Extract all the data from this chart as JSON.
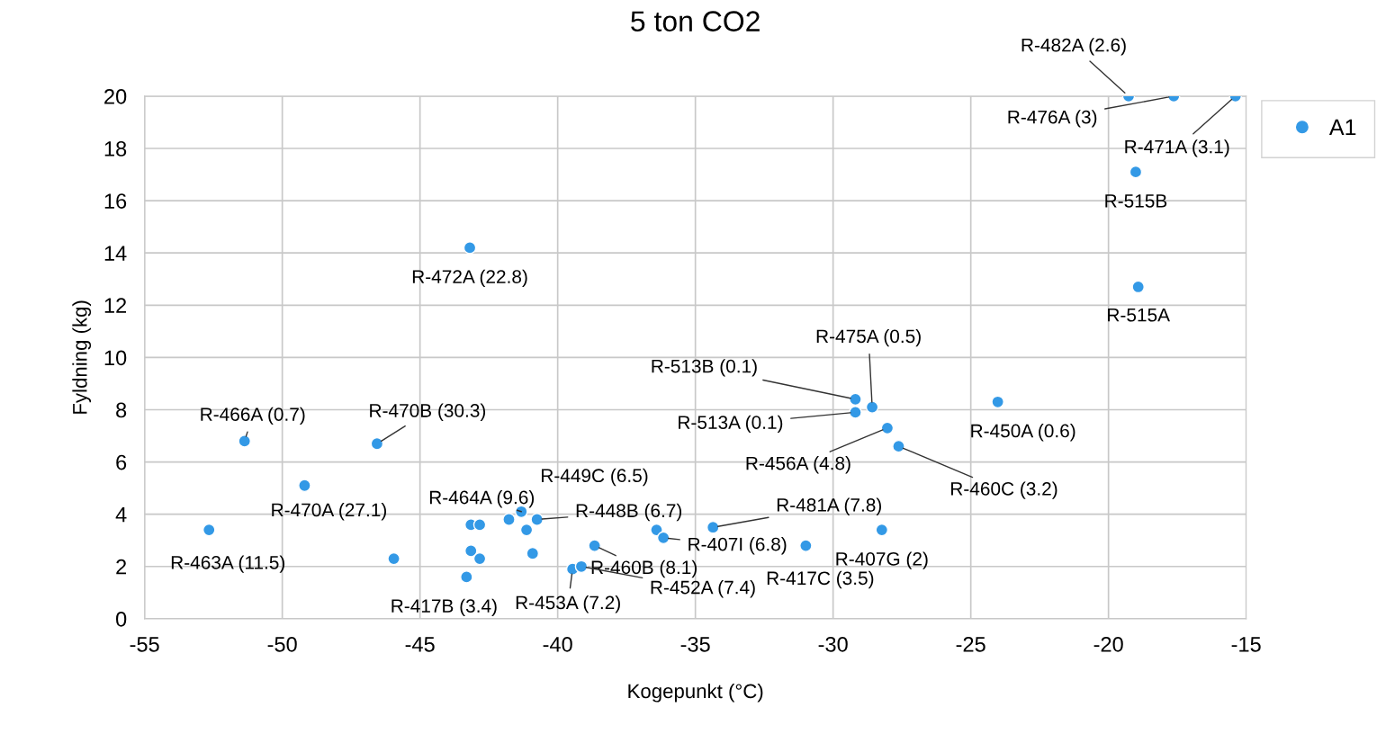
{
  "chart_data": {
    "type": "scatter",
    "title": "5 ton CO2",
    "xlabel": "Kogepunkt (°C)",
    "ylabel": "Fyldning (kg)",
    "xlim": [
      -55,
      -15
    ],
    "xticks": [
      -55,
      -50,
      -45,
      -40,
      -35,
      -30,
      -25,
      -20,
      -15
    ],
    "ylim": [
      0,
      20
    ],
    "yticks": [
      0,
      2,
      4,
      6,
      8,
      10,
      12,
      14,
      16,
      18,
      20
    ],
    "grid": true,
    "legend": "top right",
    "marker": "circle",
    "series": [
      {
        "name": "A1",
        "color": "#3399e6",
        "x": [
          -19.27,
          -17.63,
          -15.39,
          -19.01,
          -18.92,
          -43.19,
          -29.19,
          -29.19,
          -28.58,
          -28.03,
          -27.62,
          -24.02,
          -51.37,
          -46.56,
          -49.19,
          -52.66,
          -34.36,
          -30.99,
          -28.23,
          -43.15,
          -42.83,
          -41.77,
          -41.32,
          -40.75,
          -41.13,
          -36.41,
          -36.16,
          -45.95,
          -43.15,
          -42.83,
          -38.66,
          -39.46,
          -39.14,
          -43.31,
          -40.91
        ],
        "values": [
          20,
          20,
          20,
          17.1,
          12.7,
          14.2,
          8.4,
          7.9,
          8.1,
          7.3,
          6.6,
          8.3,
          6.8,
          6.7,
          5.1,
          3.4,
          3.5,
          2.8,
          3.4,
          3.6,
          3.6,
          3.8,
          4.1,
          3.8,
          3.4,
          3.4,
          3.1,
          2.3,
          2.6,
          2.3,
          2.8,
          1.9,
          2.0,
          1.6,
          2.5
        ]
      }
    ],
    "annotations": [
      {
        "text": "R-482A (2.6)",
        "x": -19.27,
        "y": 20
      },
      {
        "text": "R-476A (3)",
        "x": -17.63,
        "y": 20
      },
      {
        "text": "R-471A (3.1)",
        "x": -15.39,
        "y": 20
      },
      {
        "text": "R-515B",
        "x": -19.01,
        "y": 17.1
      },
      {
        "text": "R-515A",
        "x": -18.92,
        "y": 12.7
      },
      {
        "text": "R-472A (22.8)",
        "x": -43.19,
        "y": 14.2
      },
      {
        "text": "R-513B (0.1)",
        "x": -29.19,
        "y": 8.4
      },
      {
        "text": "R-513A (0.1)",
        "x": -29.19,
        "y": 7.9
      },
      {
        "text": "R-475A (0.5)",
        "x": -28.58,
        "y": 8.1
      },
      {
        "text": "R-456A (4.8)",
        "x": -28.03,
        "y": 7.3
      },
      {
        "text": "R-460C (3.2)",
        "x": -27.62,
        "y": 6.6
      },
      {
        "text": "R-450A (0.6)",
        "x": -24.02,
        "y": 8.3
      },
      {
        "text": "R-466A (0.7)",
        "x": -51.37,
        "y": 6.8
      },
      {
        "text": "R-470B (30.3)",
        "x": -46.56,
        "y": 6.7
      },
      {
        "text": "R-470A (27.1)",
        "x": -49.19,
        "y": 5.1
      },
      {
        "text": "R-463A (11.5)",
        "x": -52.66,
        "y": 3.4
      },
      {
        "text": "R-481A (7.8)",
        "x": -34.36,
        "y": 3.5
      },
      {
        "text": "R-417C (3.5)",
        "x": -30.99,
        "y": 2.8
      },
      {
        "text": "R-407G (2)",
        "x": -28.23,
        "y": 3.4
      },
      {
        "text": "R-464A (9.6)",
        "x": -41.32,
        "y": 4.1
      },
      {
        "text": "R-449C (6.5)",
        "x": -41.77,
        "y": 3.8
      },
      {
        "text": "R-448B (6.7)",
        "x": -40.75,
        "y": 3.8
      },
      {
        "text": "R-460B (8.1)",
        "x": -38.66,
        "y": 2.8
      },
      {
        "text": "R-407I (6.8)",
        "x": -36.16,
        "y": 3.1
      },
      {
        "text": "R-452A (7.4)",
        "x": -39.14,
        "y": 2.0
      },
      {
        "text": "R-453A (7.2)",
        "x": -39.46,
        "y": 1.9
      },
      {
        "text": "R-417B (3.4)",
        "x": -43.31,
        "y": 1.6
      }
    ]
  }
}
